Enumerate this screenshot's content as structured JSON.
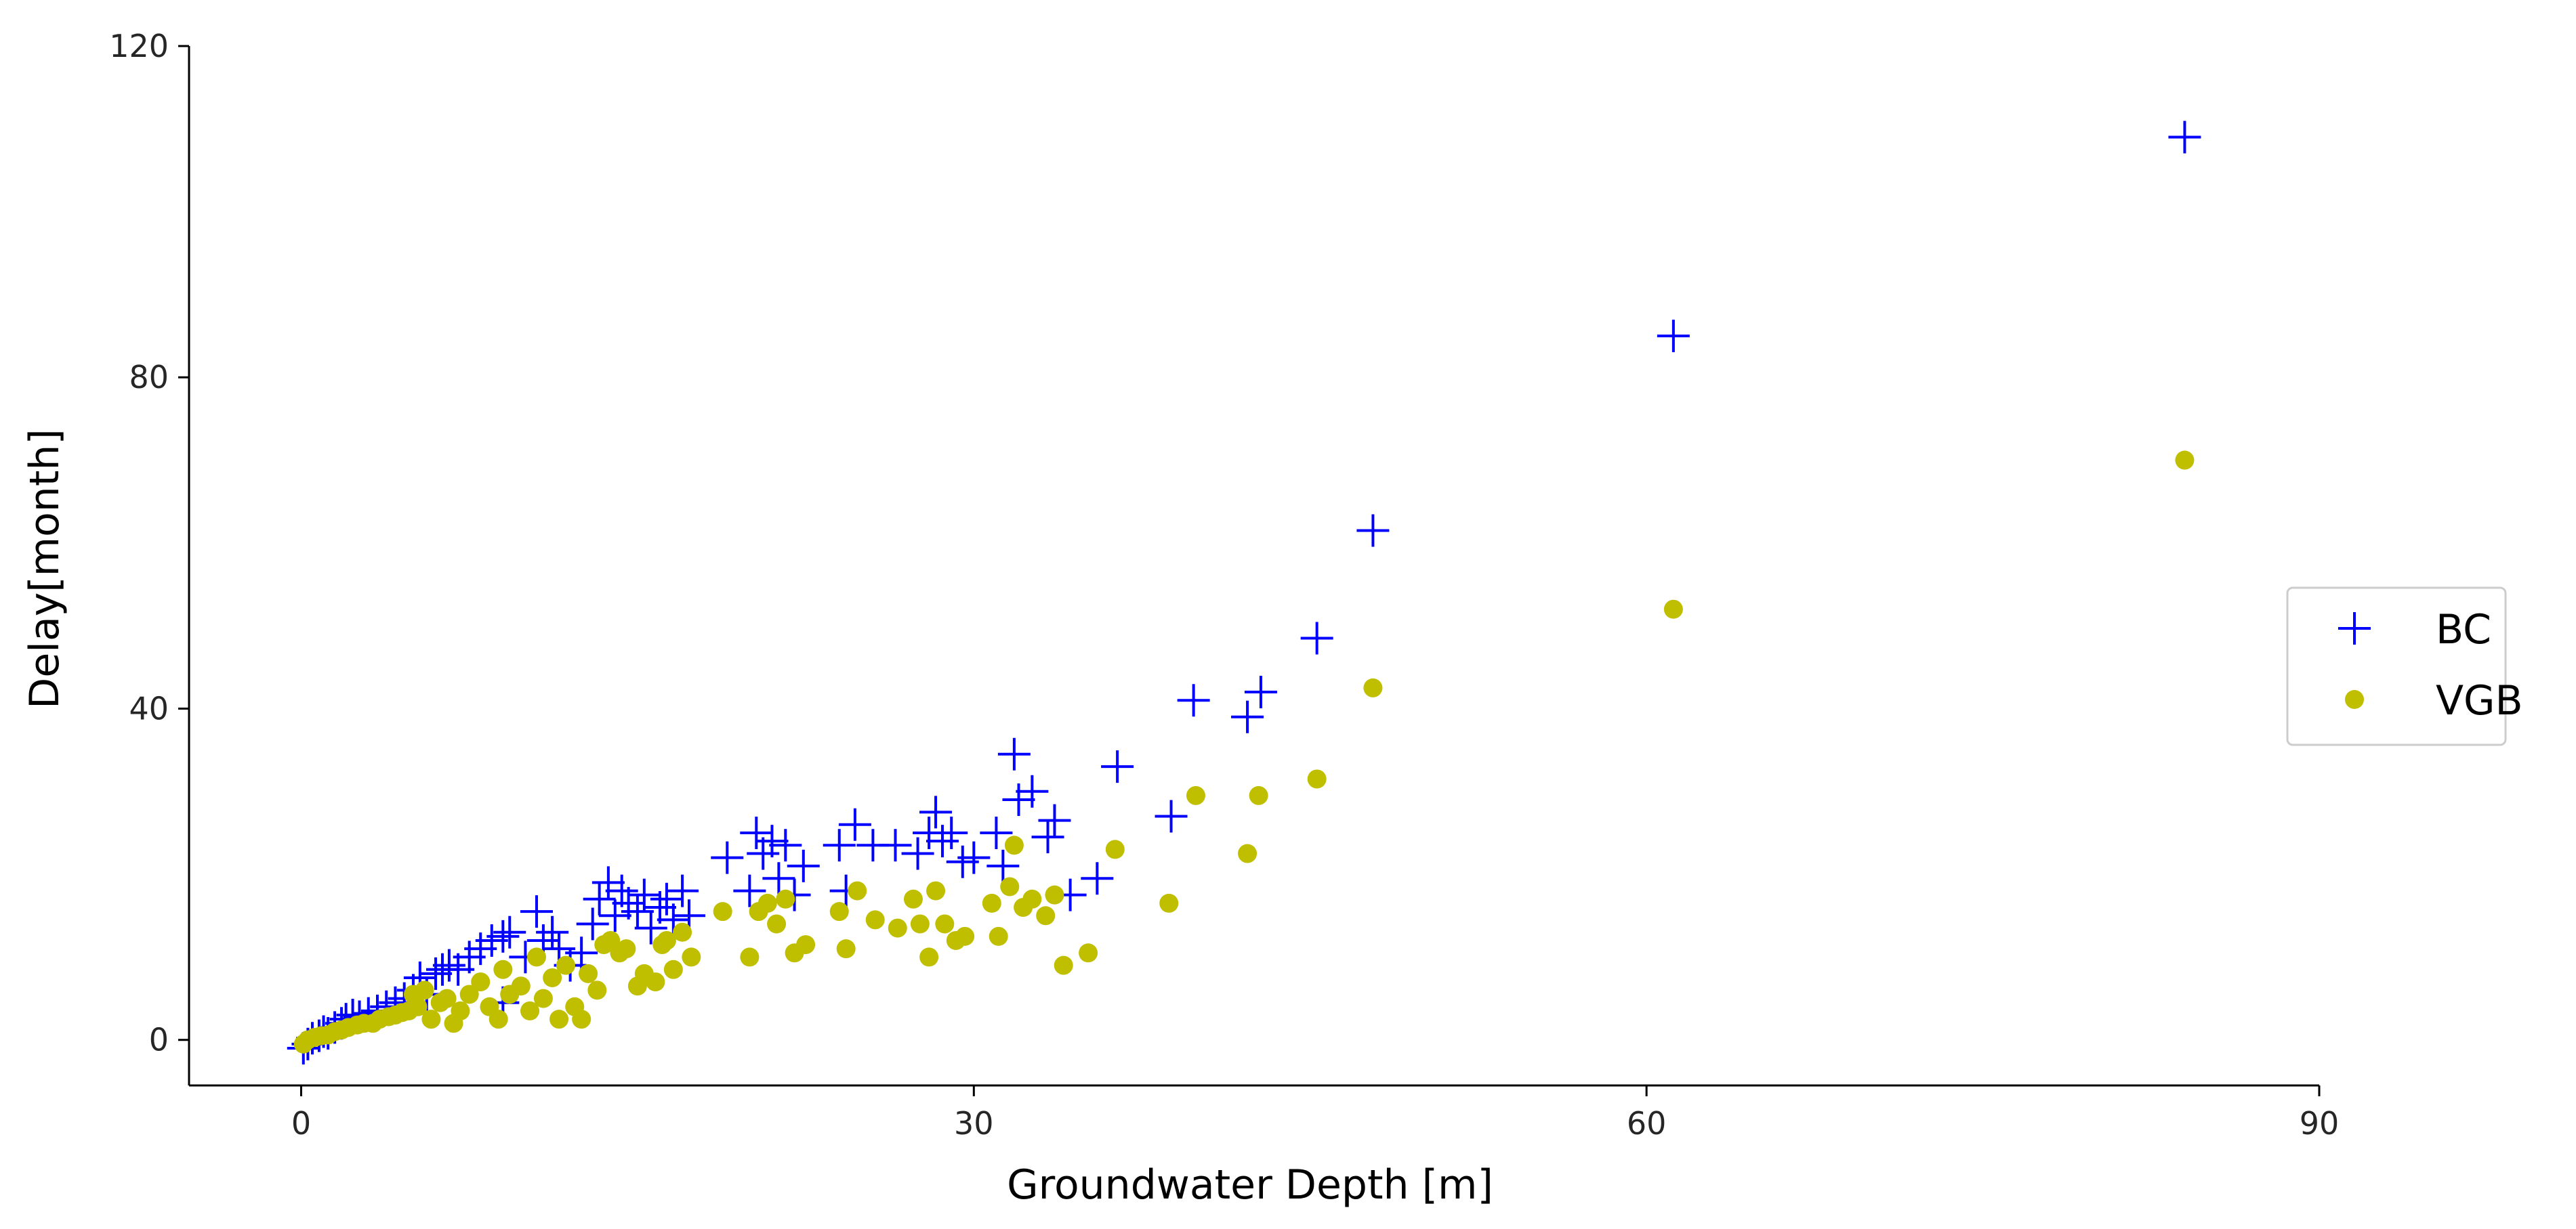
{
  "chart_data": {
    "type": "scatter",
    "title": "",
    "xlabel": "Groundwater Depth [m]",
    "ylabel": "Delay[month]",
    "xlim": [
      -5,
      90
    ],
    "ylim": [
      -5.5,
      120
    ],
    "xticks": [
      "0",
      "30",
      "60",
      "90"
    ],
    "yticks": [
      "0",
      "40",
      "80",
      "120"
    ],
    "grid": false,
    "legend": {
      "position": "center-right"
    },
    "series": [
      {
        "name": "BC",
        "marker": "plus",
        "color": "#0000ff",
        "points": [
          [
            0.1,
            -1.0
          ],
          [
            0.3,
            -0.5
          ],
          [
            0.5,
            0.2
          ],
          [
            0.8,
            0.5
          ],
          [
            1.0,
            1.0
          ],
          [
            1.2,
            0.8
          ],
          [
            1.5,
            1.5
          ],
          [
            1.8,
            2.0
          ],
          [
            2.0,
            2.5
          ],
          [
            2.3,
            3.0
          ],
          [
            2.6,
            2.8
          ],
          [
            3.0,
            3.2
          ],
          [
            3.4,
            3.5
          ],
          [
            3.8,
            4.0
          ],
          [
            4.2,
            4.5
          ],
          [
            4.6,
            5.0
          ],
          [
            5.0,
            6.0
          ],
          [
            5.3,
            7.5
          ],
          [
            5.6,
            5.5
          ],
          [
            6.0,
            8.0
          ],
          [
            6.3,
            8.5
          ],
          [
            6.6,
            9.0
          ],
          [
            7.0,
            8.5
          ],
          [
            7.5,
            10.0
          ],
          [
            8.0,
            11.0
          ],
          [
            8.5,
            12.0
          ],
          [
            9.0,
            12.5
          ],
          [
            9.3,
            13.0
          ],
          [
            9.0,
            4.5
          ],
          [
            10.0,
            10.0
          ],
          [
            10.5,
            15.5
          ],
          [
            10.8,
            12.0
          ],
          [
            11.2,
            13.0
          ],
          [
            11.5,
            11.0
          ],
          [
            12.0,
            9.0
          ],
          [
            12.5,
            10.5
          ],
          [
            13.0,
            14.0
          ],
          [
            13.3,
            17.0
          ],
          [
            13.7,
            19.0
          ],
          [
            14.0,
            15.0
          ],
          [
            14.3,
            18.0
          ],
          [
            14.6,
            16.5
          ],
          [
            15.0,
            15.5
          ],
          [
            15.3,
            17.5
          ],
          [
            15.6,
            13.5
          ],
          [
            16.0,
            16.0
          ],
          [
            16.3,
            17.0
          ],
          [
            16.6,
            14.5
          ],
          [
            17.0,
            18.0
          ],
          [
            17.3,
            15.0
          ],
          [
            19.0,
            22.0
          ],
          [
            20.0,
            18.0
          ],
          [
            20.3,
            25.0
          ],
          [
            20.6,
            22.5
          ],
          [
            21.0,
            24.0
          ],
          [
            21.3,
            19.5
          ],
          [
            21.6,
            23.5
          ],
          [
            22.0,
            17.5
          ],
          [
            22.4,
            21.0
          ],
          [
            24.0,
            23.5
          ],
          [
            24.3,
            18.0
          ],
          [
            24.7,
            26.0
          ],
          [
            25.5,
            23.5
          ],
          [
            26.5,
            23.5
          ],
          [
            27.5,
            22.5
          ],
          [
            28.0,
            25.0
          ],
          [
            28.3,
            27.5
          ],
          [
            28.6,
            24.0
          ],
          [
            29.0,
            25.0
          ],
          [
            29.5,
            21.5
          ],
          [
            30.0,
            22.0
          ],
          [
            31.0,
            25.0
          ],
          [
            31.3,
            21.0
          ],
          [
            31.8,
            34.5
          ],
          [
            32.0,
            29.0
          ],
          [
            32.6,
            30.0
          ],
          [
            33.3,
            24.5
          ],
          [
            33.6,
            26.5
          ],
          [
            34.3,
            17.5
          ],
          [
            35.5,
            19.5
          ],
          [
            36.4,
            33.0
          ],
          [
            38.8,
            27.0
          ],
          [
            39.8,
            41.0
          ],
          [
            42.2,
            39.0
          ],
          [
            42.8,
            42.0
          ],
          [
            45.3,
            48.5
          ],
          [
            47.8,
            61.5
          ],
          [
            61.2,
            85.0
          ],
          [
            84.0,
            109.0
          ]
        ]
      },
      {
        "name": "VGB",
        "marker": "dot",
        "color": "#bfbf00",
        "points": [
          [
            0.1,
            -0.5
          ],
          [
            0.3,
            0.0
          ],
          [
            0.6,
            0.3
          ],
          [
            0.9,
            0.5
          ],
          [
            1.2,
            0.6
          ],
          [
            1.5,
            1.0
          ],
          [
            1.8,
            1.2
          ],
          [
            2.1,
            1.5
          ],
          [
            2.5,
            1.8
          ],
          [
            2.8,
            2.0
          ],
          [
            3.2,
            2.0
          ],
          [
            3.5,
            2.5
          ],
          [
            3.9,
            2.8
          ],
          [
            4.2,
            3.0
          ],
          [
            4.5,
            3.3
          ],
          [
            4.8,
            3.5
          ],
          [
            5.0,
            5.5
          ],
          [
            5.2,
            4.0
          ],
          [
            5.5,
            6.0
          ],
          [
            5.8,
            2.5
          ],
          [
            6.2,
            4.5
          ],
          [
            6.5,
            5.0
          ],
          [
            6.8,
            2.0
          ],
          [
            7.1,
            3.5
          ],
          [
            7.5,
            5.5
          ],
          [
            8.0,
            7.0
          ],
          [
            8.4,
            4.0
          ],
          [
            8.8,
            2.5
          ],
          [
            9.0,
            8.5
          ],
          [
            9.3,
            5.5
          ],
          [
            9.8,
            6.5
          ],
          [
            10.2,
            3.5
          ],
          [
            10.5,
            10.0
          ],
          [
            10.8,
            5.0
          ],
          [
            11.2,
            7.5
          ],
          [
            11.5,
            2.5
          ],
          [
            11.8,
            9.0
          ],
          [
            12.2,
            4.0
          ],
          [
            12.5,
            2.5
          ],
          [
            12.8,
            8.0
          ],
          [
            13.2,
            6.0
          ],
          [
            13.5,
            11.5
          ],
          [
            13.8,
            12.0
          ],
          [
            14.2,
            10.5
          ],
          [
            14.5,
            11.0
          ],
          [
            15.0,
            6.5
          ],
          [
            15.3,
            8.0
          ],
          [
            15.8,
            7.0
          ],
          [
            16.1,
            11.5
          ],
          [
            16.3,
            12.0
          ],
          [
            16.6,
            8.5
          ],
          [
            17.0,
            13.0
          ],
          [
            17.4,
            10.0
          ],
          [
            18.8,
            15.5
          ],
          [
            20.0,
            10.0
          ],
          [
            20.4,
            15.5
          ],
          [
            20.8,
            16.5
          ],
          [
            21.2,
            14.0
          ],
          [
            21.6,
            17.0
          ],
          [
            22.0,
            10.5
          ],
          [
            22.5,
            11.5
          ],
          [
            24.0,
            15.5
          ],
          [
            24.3,
            11.0
          ],
          [
            24.8,
            18.0
          ],
          [
            25.6,
            14.5
          ],
          [
            26.6,
            13.5
          ],
          [
            27.3,
            17.0
          ],
          [
            27.6,
            14.0
          ],
          [
            28.0,
            10.0
          ],
          [
            28.3,
            18.0
          ],
          [
            28.7,
            14.0
          ],
          [
            29.2,
            12.0
          ],
          [
            29.6,
            12.5
          ],
          [
            30.8,
            16.5
          ],
          [
            31.1,
            12.5
          ],
          [
            31.6,
            18.5
          ],
          [
            31.8,
            23.5
          ],
          [
            32.2,
            16.0
          ],
          [
            32.6,
            17.0
          ],
          [
            33.2,
            15.0
          ],
          [
            33.6,
            17.5
          ],
          [
            34.0,
            9.0
          ],
          [
            35.1,
            10.5
          ],
          [
            36.3,
            23.0
          ],
          [
            38.7,
            16.5
          ],
          [
            39.9,
            29.5
          ],
          [
            42.2,
            22.5
          ],
          [
            42.7,
            29.5
          ],
          [
            45.3,
            31.5
          ],
          [
            47.8,
            42.5
          ],
          [
            61.2,
            52.0
          ],
          [
            84.0,
            70.0
          ]
        ]
      }
    ]
  }
}
